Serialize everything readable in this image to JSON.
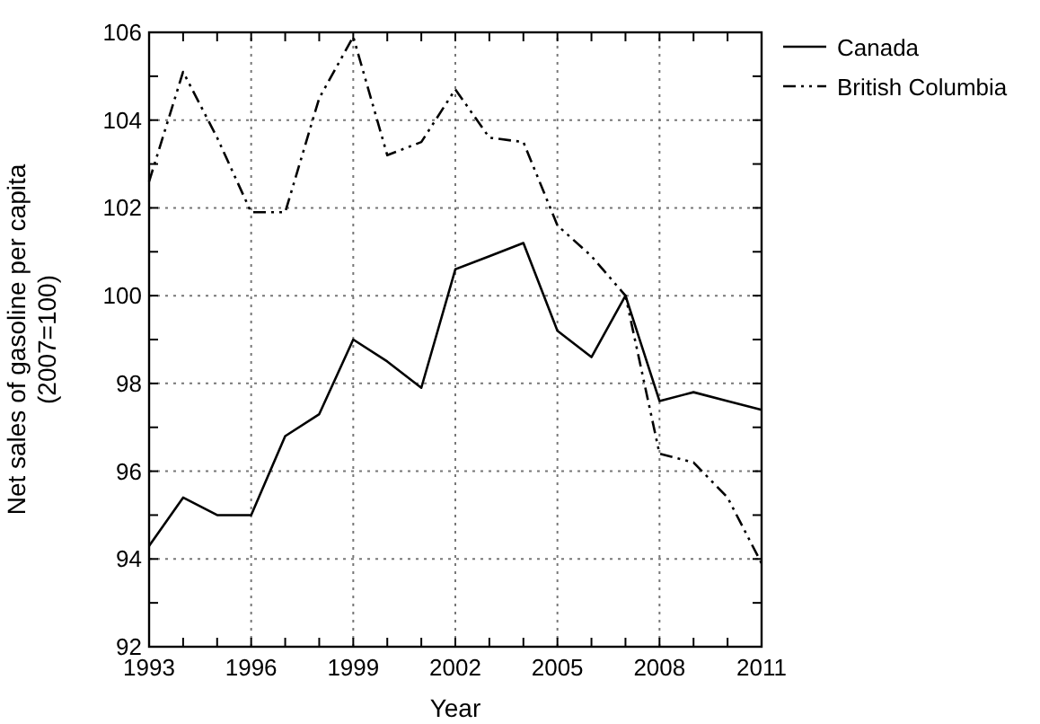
{
  "chart_data": {
    "type": "line",
    "xlabel": "Year",
    "ylabel": "Net sales of gasoline per capita\n(2007=100)",
    "x": [
      1993,
      1994,
      1995,
      1996,
      1997,
      1998,
      1999,
      2000,
      2001,
      2002,
      2003,
      2004,
      2005,
      2006,
      2007,
      2008,
      2009,
      2010,
      2011
    ],
    "series": [
      {
        "name": "Canada",
        "color": "#000000",
        "line_style": "solid",
        "values": [
          94.3,
          95.4,
          95.0,
          95.0,
          96.8,
          97.3,
          99.0,
          98.5,
          97.9,
          100.6,
          100.9,
          101.2,
          99.2,
          98.6,
          100.0,
          97.6,
          97.8,
          97.6,
          97.4
        ]
      },
      {
        "name": "British Columbia",
        "color": "#000000",
        "line_style": "dashed",
        "values": [
          102.6,
          105.1,
          103.6,
          101.9,
          101.9,
          104.5,
          105.9,
          103.2,
          103.5,
          104.7,
          103.6,
          103.5,
          101.6,
          100.9,
          100.0,
          96.4,
          96.2,
          95.4,
          93.9
        ]
      }
    ],
    "xlim": [
      1993,
      2011
    ],
    "xticks": [
      1993,
      {
        "value": 1994,
        "label": null
      },
      {
        "value": 1995,
        "label": null
      },
      1996,
      {
        "value": 1997,
        "label": null
      },
      {
        "value": 1998,
        "label": null
      },
      1999,
      {
        "value": 2000,
        "label": null
      },
      {
        "value": 2001,
        "label": null
      },
      2002,
      {
        "value": 2003,
        "label": null
      },
      {
        "value": 2004,
        "label": null
      },
      2005,
      {
        "value": 2006,
        "label": null
      },
      {
        "value": 2007,
        "label": null
      },
      2008,
      {
        "value": 2009,
        "label": null
      },
      {
        "value": 2010,
        "label": null
      },
      2011
    ],
    "ylim": [
      92,
      106
    ],
    "yticks": [
      92,
      {
        "value": 93,
        "label": null
      },
      94,
      {
        "value": 95,
        "label": null
      },
      96,
      {
        "value": 97,
        "label": null
      },
      98,
      {
        "value": 99,
        "label": null
      },
      100,
      {
        "value": 101,
        "label": null
      },
      102,
      {
        "value": 103,
        "label": null
      },
      104,
      {
        "value": 105,
        "label": null
      },
      106
    ],
    "grid": true,
    "legend": "top right"
  }
}
